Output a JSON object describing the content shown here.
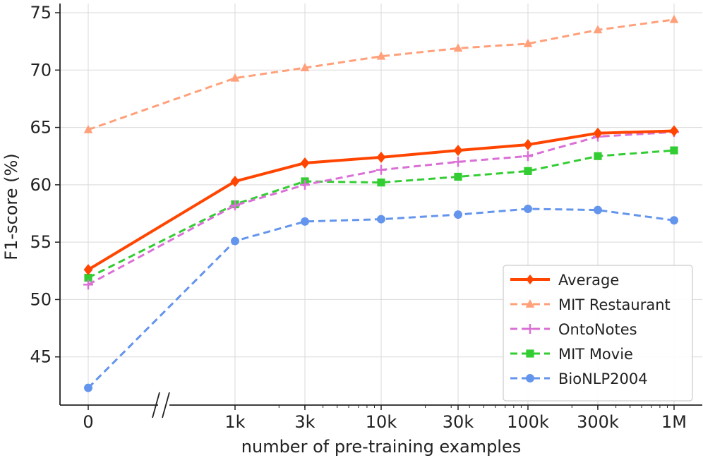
{
  "chart_data": {
    "type": "line",
    "title": "",
    "xlabel": "number of pre-training examples",
    "ylabel": "F1-score (%)",
    "categories": [
      "0",
      "1k",
      "3k",
      "10k",
      "30k",
      "100k",
      "300k",
      "1M"
    ],
    "ylim": [
      40.8,
      75.8
    ],
    "yticks": [
      45,
      50,
      55,
      60,
      65,
      70,
      75
    ],
    "grid": true,
    "x_axis_break_between": [
      "0",
      "1k"
    ],
    "legend_position": "lower-right",
    "series": [
      {
        "name": "Average",
        "color": "#ff4500",
        "marker": "diamond",
        "style": "solid",
        "values": [
          52.6,
          60.3,
          61.9,
          62.4,
          63.0,
          63.5,
          64.5,
          64.7
        ]
      },
      {
        "name": "MIT Restaurant",
        "color": "#ffa07a",
        "marker": "triangle",
        "style": "dashed",
        "values": [
          64.8,
          69.3,
          70.2,
          71.2,
          71.9,
          72.3,
          73.5,
          74.4
        ]
      },
      {
        "name": "OntoNotes",
        "color": "#da70d6",
        "marker": "plus",
        "style": "dashed",
        "values": [
          51.3,
          58.2,
          60.0,
          61.3,
          62.0,
          62.5,
          64.2,
          64.6
        ]
      },
      {
        "name": "MIT Movie",
        "color": "#32cd32",
        "marker": "square",
        "style": "dashed",
        "values": [
          51.9,
          58.3,
          60.3,
          60.2,
          60.7,
          61.2,
          62.5,
          63.0
        ]
      },
      {
        "name": "BioNLP2004",
        "color": "#6495ed",
        "marker": "circle",
        "style": "dashed",
        "values": [
          42.3,
          55.1,
          56.8,
          57.0,
          57.4,
          57.9,
          57.8,
          56.9
        ]
      }
    ]
  }
}
